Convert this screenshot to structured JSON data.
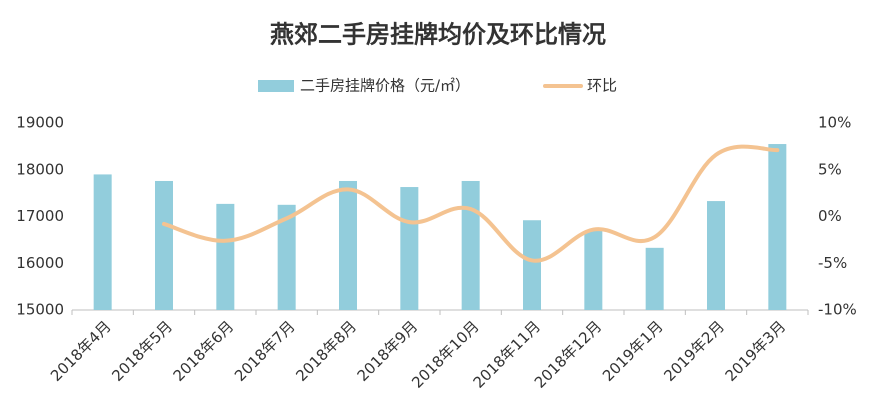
{
  "chart_data": {
    "type": "bar-line",
    "title": "燕郊二手房挂牌均价及环比情况",
    "categories": [
      "2018年4月",
      "2018年5月",
      "2018年6月",
      "2018年7月",
      "2018年8月",
      "2018年9月",
      "2018年10月",
      "2018年11月",
      "2018年12月",
      "2019年1月",
      "2019年2月",
      "2019年3月"
    ],
    "series": [
      {
        "name": "二手房挂牌价格（元/㎡）",
        "type": "bar",
        "color": "#92cddc",
        "values": [
          17900,
          17760,
          17270,
          17250,
          17760,
          17630,
          17760,
          16920,
          16700,
          16330,
          17330,
          18550
        ]
      },
      {
        "name": "环比",
        "type": "line",
        "axis": "y2",
        "color": "#f4c391",
        "values": [
          null,
          -0.8,
          -2.6,
          -0.2,
          2.9,
          -0.6,
          0.8,
          -4.7,
          -1.4,
          -2.2,
          6.6,
          7.1
        ]
      }
    ],
    "ylim": [
      15000,
      19000
    ],
    "yticks": [
      15000,
      16000,
      17000,
      18000,
      19000
    ],
    "y2lim": [
      -10,
      10
    ],
    "y2ticks": [
      {
        "value": -10,
        "label": "-10%"
      },
      {
        "value": -5,
        "label": "-5%"
      },
      {
        "value": 0,
        "label": "0%"
      },
      {
        "value": 5,
        "label": "5%"
      },
      {
        "value": 10,
        "label": "10%"
      }
    ],
    "grid": false,
    "legend": "top"
  }
}
